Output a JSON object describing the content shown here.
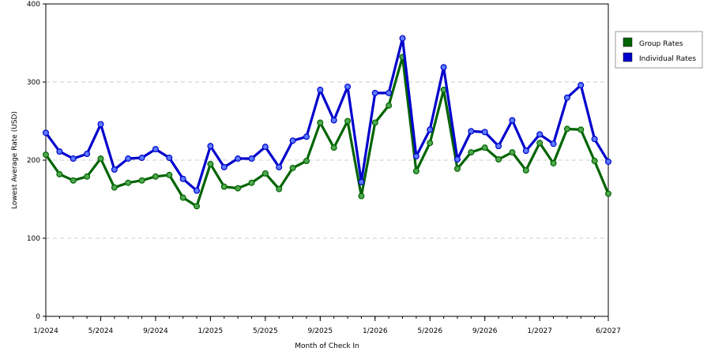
{
  "chart_data": {
    "type": "line",
    "title": "",
    "xlabel": "Month of Check In",
    "ylabel": "Lowest Average Rate (USD)",
    "ylim": [
      0,
      400
    ],
    "yticks": [
      "0",
      "100",
      "200",
      "300",
      "400"
    ],
    "grid": "horizontal-dashed",
    "legend_position": "right-top",
    "x_tick_labels": [
      "1/2024",
      "5/2024",
      "9/2024",
      "1/2025",
      "5/2025",
      "9/2025",
      "1/2026",
      "5/2026",
      "9/2026",
      "1/2027",
      "6/2027"
    ],
    "x_tick_month_index": [
      0,
      4,
      8,
      12,
      16,
      20,
      24,
      28,
      32,
      36,
      41
    ],
    "months": [
      "1/2024",
      "2/2024",
      "3/2024",
      "4/2024",
      "5/2024",
      "6/2024",
      "7/2024",
      "8/2024",
      "9/2024",
      "10/2024",
      "11/2024",
      "12/2024",
      "1/2025",
      "2/2025",
      "3/2025",
      "4/2025",
      "5/2025",
      "6/2025",
      "7/2025",
      "8/2025",
      "9/2025",
      "10/2025",
      "11/2025",
      "12/2025",
      "1/2026",
      "2/2026",
      "3/2026",
      "4/2026",
      "5/2026",
      "6/2026",
      "7/2026",
      "8/2026",
      "9/2026",
      "10/2026",
      "11/2026",
      "12/2026",
      "1/2027",
      "2/2027",
      "3/2027",
      "4/2027",
      "5/2027",
      "6/2027"
    ],
    "series": [
      {
        "name": "Group Rates",
        "color": "#006400",
        "values": [
          207,
          182,
          174,
          179,
          202,
          165,
          171,
          174,
          179,
          181,
          152,
          141,
          195,
          166,
          164,
          171,
          183,
          163,
          190,
          199,
          248,
          216,
          250,
          154,
          248,
          270,
          332,
          186,
          222,
          290,
          189,
          210,
          216,
          201,
          210,
          187,
          222,
          196,
          240,
          239,
          199,
          157
        ]
      },
      {
        "name": "Individual Rates",
        "color": "#0000cc",
        "values": [
          235,
          211,
          202,
          208,
          246,
          188,
          202,
          203,
          214,
          203,
          176,
          161,
          218,
          191,
          202,
          202,
          217,
          191,
          225,
          230,
          290,
          251,
          294,
          172,
          286,
          286,
          356,
          205,
          239,
          319,
          201,
          237,
          236,
          218,
          251,
          212,
          233,
          221,
          280,
          296,
          227,
          198
        ]
      }
    ]
  }
}
